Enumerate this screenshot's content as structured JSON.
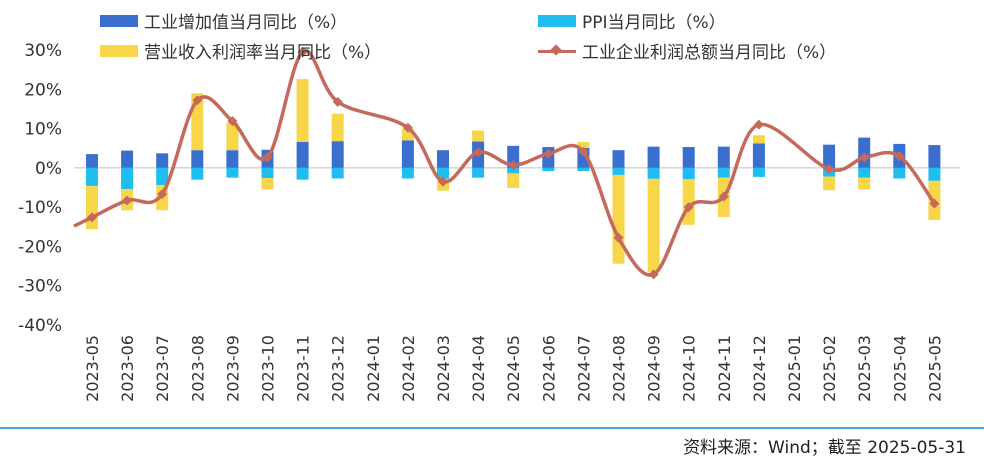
{
  "legend": {
    "industrial_va": "工业增加值当月同比（%）",
    "ppi": "PPI当月同比（%）",
    "margin": "营业收入利润率当月同比（%）",
    "profit": "工业企业利润总额当月同比（%）"
  },
  "source": "资料来源：Wind；截至  2025-05-31",
  "colors": {
    "industrial_va": "#3b6fcf",
    "ppi": "#1fbdf0",
    "margin": "#f7d64a",
    "profit": "#c5695a",
    "footer_rule": "#4aa3df"
  },
  "chart_data": {
    "type": "bar",
    "categories": [
      "2023-05",
      "2023-06",
      "2023-07",
      "2023-08",
      "2023-09",
      "2023-10",
      "2023-11",
      "2023-12",
      "2024-01",
      "2024-02",
      "2024-03",
      "2024-04",
      "2024-05",
      "2024-06",
      "2024-07",
      "2024-08",
      "2024-09",
      "2024-10",
      "2024-11",
      "2024-12",
      "2025-01",
      "2025-02",
      "2025-03",
      "2025-04",
      "2025-05"
    ],
    "stacked": true,
    "ylim": [
      -40,
      30
    ],
    "yticks": [
      30,
      20,
      10,
      0,
      -10,
      -20,
      -30,
      -40
    ],
    "ytick_labels": [
      "30%",
      "20%",
      "10%",
      "0%",
      "-10%",
      "-20%",
      "-30%",
      "-40%"
    ],
    "series": [
      {
        "name": "工业增加值当月同比（%）",
        "type": "bar",
        "color": "#3b6fcf",
        "values": [
          3.5,
          4.4,
          3.7,
          4.5,
          4.5,
          4.6,
          6.6,
          6.8,
          null,
          7.0,
          4.5,
          6.7,
          5.6,
          5.3,
          5.1,
          4.5,
          5.4,
          5.3,
          5.4,
          6.2,
          null,
          5.9,
          7.7,
          6.1,
          5.8
        ]
      },
      {
        "name": "PPI当月同比（%）",
        "type": "bar",
        "color": "#1fbdf0",
        "values": [
          -4.6,
          -5.4,
          -4.4,
          -3.0,
          -2.5,
          -2.6,
          -3.0,
          -2.7,
          null,
          -2.7,
          -2.8,
          -2.5,
          -1.4,
          -0.8,
          -0.8,
          -1.8,
          -2.8,
          -2.9,
          -2.5,
          -2.3,
          null,
          -2.2,
          -2.5,
          -2.7,
          -3.3
        ]
      },
      {
        "name": "营业收入利润率当月同比（%）",
        "type": "bar",
        "color": "#f7d64a",
        "values": [
          -11.0,
          -5.4,
          -6.4,
          14.5,
          7.0,
          -2.9,
          16.0,
          7.0,
          null,
          3.0,
          -3.0,
          2.8,
          -3.7,
          0.0,
          1.5,
          -22.6,
          -23.7,
          -11.6,
          -10.0,
          2.1,
          null,
          -3.5,
          -3.0,
          0.0,
          -10.0
        ]
      },
      {
        "name": "工业企业利润总额当月同比（%）",
        "type": "line",
        "color": "#c5695a",
        "values": [
          -12.6,
          -8.3,
          -6.7,
          17.2,
          11.9,
          2.7,
          29.5,
          16.8,
          null,
          10.2,
          -3.5,
          4.0,
          0.7,
          3.6,
          4.1,
          -17.8,
          -27.1,
          -10.0,
          -7.3,
          11.0,
          null,
          -0.3,
          2.6,
          3.0,
          -9.1
        ]
      }
    ]
  }
}
